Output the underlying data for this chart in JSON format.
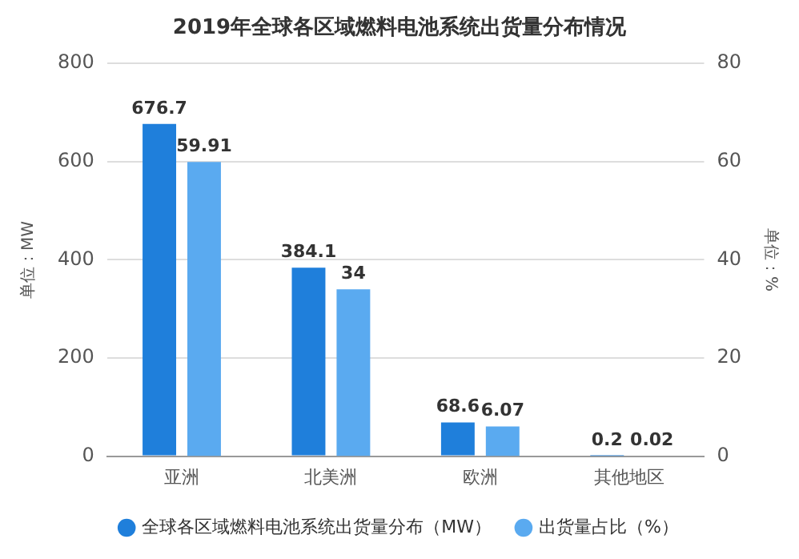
{
  "chart_data": {
    "type": "bar",
    "title": "2019年全球各区域燃料电池系统出货量分布情况",
    "ylabel": "单位：MW",
    "y2label": "单位：%",
    "categories": [
      "亚洲",
      "北美洲",
      "欧洲",
      "其他地区"
    ],
    "series": [
      {
        "name": "全球各区域燃料电池系统出货量分布（MW）",
        "color": "#1f7fdb",
        "values": [
          676.7,
          384.1,
          68.6,
          0.2
        ]
      },
      {
        "name": "出货量占比（%）",
        "color": "#5aaaf0",
        "values": [
          59.91,
          34,
          6.07,
          0.02
        ],
        "axis": "y2"
      }
    ],
    "ylim": [
      0,
      800
    ],
    "yticks": [
      0,
      200,
      400,
      600,
      800
    ],
    "y2lim": [
      0,
      80
    ],
    "y2ticks": [
      0,
      20,
      40,
      60,
      80
    ],
    "grid": "y",
    "legend": "bottom",
    "data_labels": true
  }
}
